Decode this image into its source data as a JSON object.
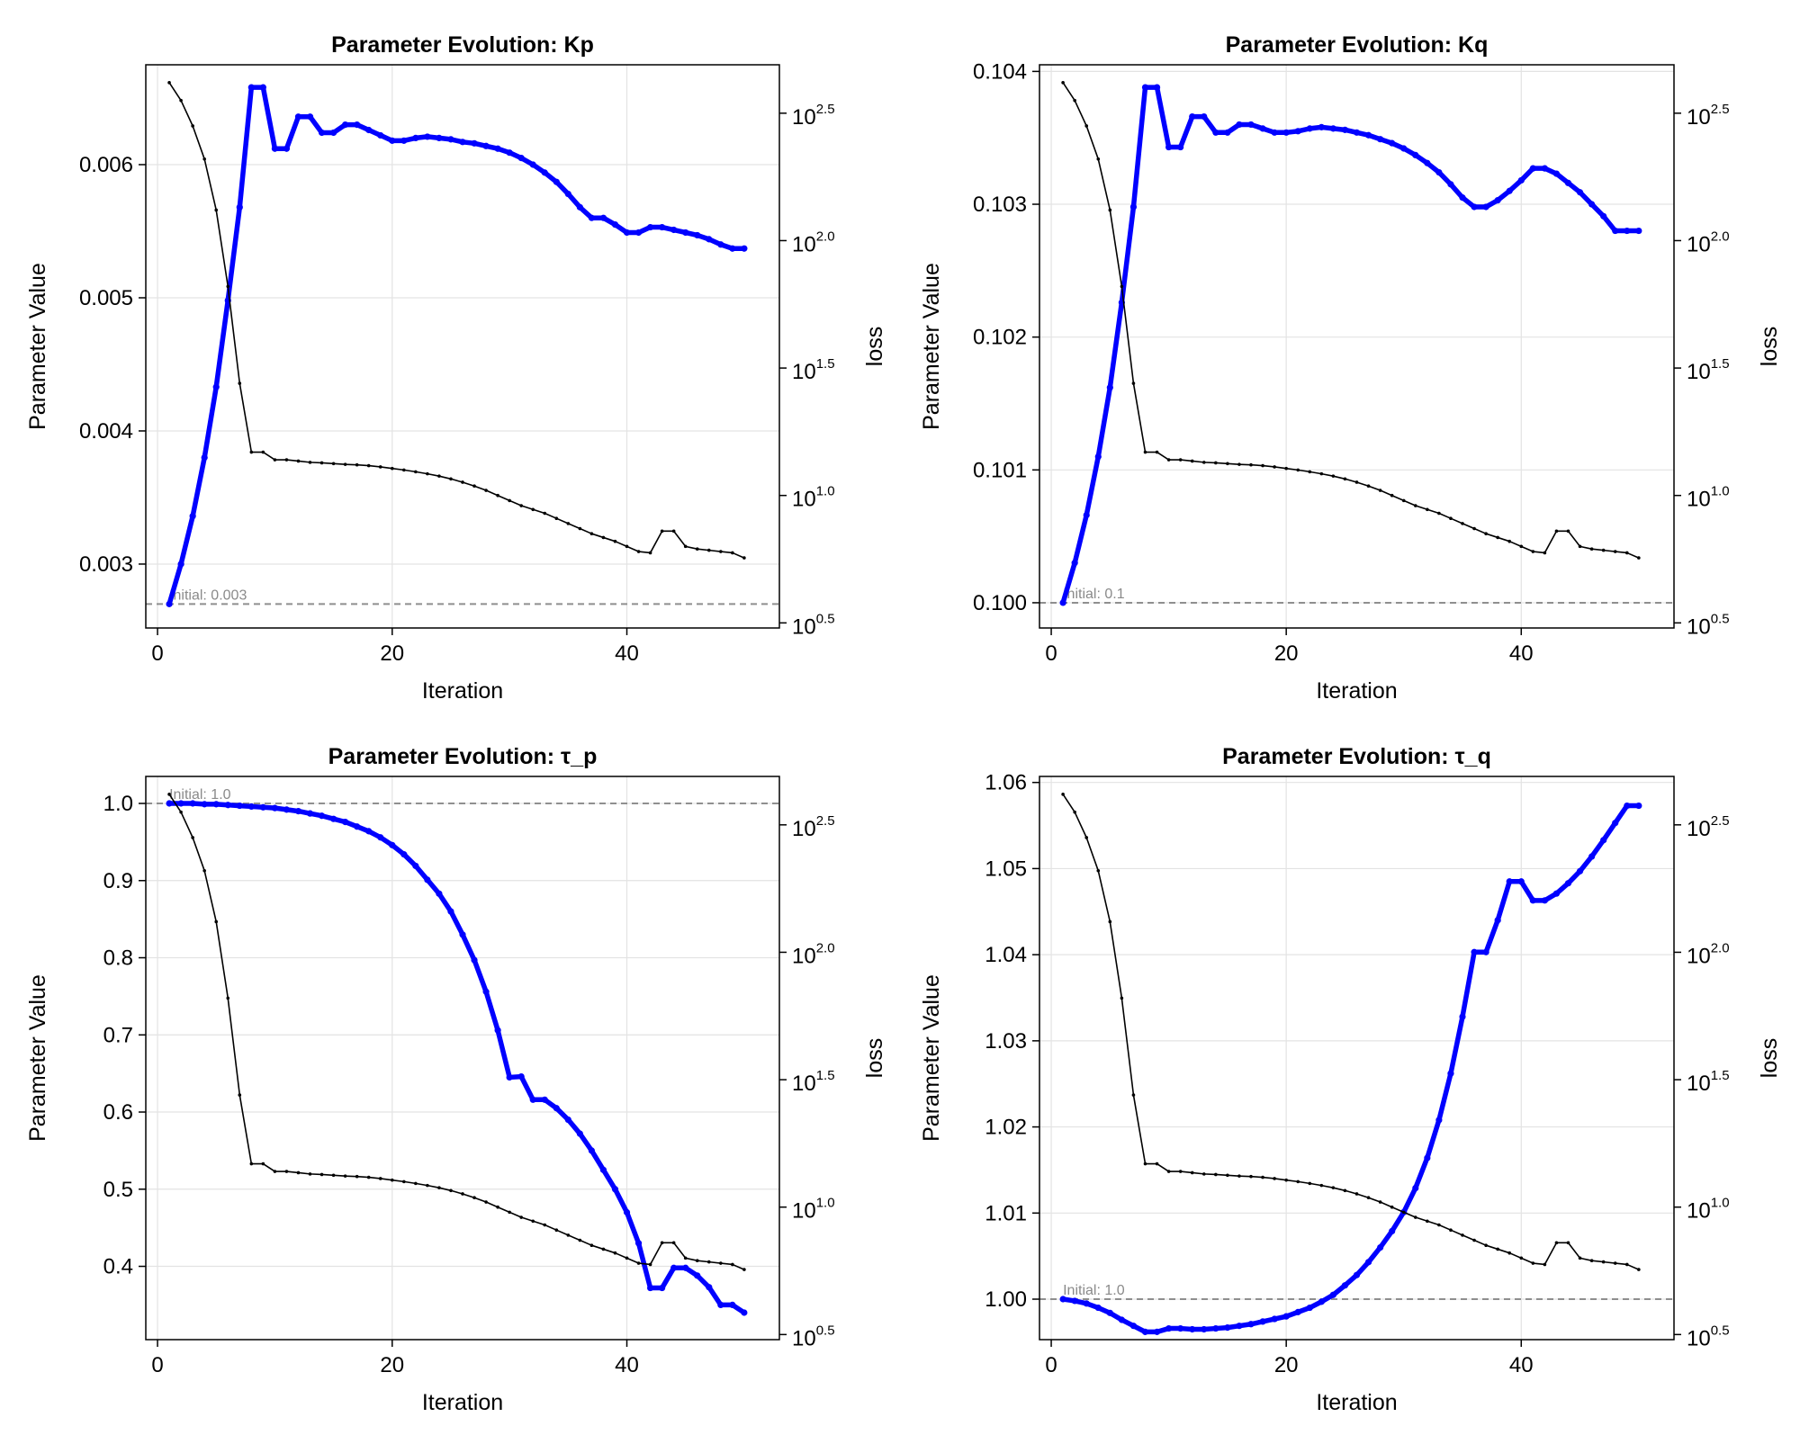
{
  "figure": {
    "colors": {
      "param_line": "#0000ff",
      "loss_line": "#000000",
      "initial_line": "#8f8f8f",
      "grid": "#e3e3e3",
      "initial_label": "#8a8a8a"
    }
  },
  "chart_data": [
    {
      "type": "line",
      "title": "Parameter Evolution: Kp",
      "xlabel": "Iteration",
      "ylabel": "Parameter Value",
      "y2label": "loss",
      "y2scale": "log10",
      "xlim": [
        -1,
        53
      ],
      "ylim": [
        0.00252,
        0.00675
      ],
      "y2lim": [
        0.48,
        2.69
      ],
      "xticks": [
        0,
        20,
        40
      ],
      "xtick_labels": [
        "0",
        "20",
        "40"
      ],
      "yticks": [
        0.003,
        0.004,
        0.005,
        0.006
      ],
      "ytick_labels": [
        "0.003",
        "0.004",
        "0.005",
        "0.006"
      ],
      "y2ticks": [
        0.5,
        1.0,
        1.5,
        2.0,
        2.5
      ],
      "y2tick_labels": [
        {
          "base": "10",
          "exp": "0.5"
        },
        {
          "base": "10",
          "exp": "1.0"
        },
        {
          "base": "10",
          "exp": "1.5"
        },
        {
          "base": "10",
          "exp": "2.0"
        },
        {
          "base": "10",
          "exp": "2.5"
        }
      ],
      "grid": true,
      "initial_value": 0.0027,
      "initial_label": "Initial: 0.003",
      "iterations": [
        1,
        2,
        3,
        4,
        5,
        6,
        7,
        8,
        9,
        10,
        11,
        12,
        13,
        14,
        15,
        16,
        17,
        18,
        19,
        20,
        21,
        22,
        23,
        24,
        25,
        26,
        27,
        28,
        29,
        30,
        31,
        32,
        33,
        34,
        35,
        36,
        37,
        38,
        39,
        40,
        41,
        42,
        43,
        44,
        45,
        46,
        47,
        48,
        49,
        50
      ],
      "series": [
        {
          "role": "parameter",
          "axis": "left",
          "color": "#0000ff",
          "values": [
            0.0027,
            0.003,
            0.00336,
            0.0038,
            0.00433,
            0.00498,
            0.00568,
            0.00658,
            0.00658,
            0.00612,
            0.00612,
            0.00636,
            0.00636,
            0.00624,
            0.00624,
            0.0063,
            0.0063,
            0.00626,
            0.00622,
            0.00618,
            0.00618,
            0.0062,
            0.00621,
            0.0062,
            0.00619,
            0.00617,
            0.00616,
            0.00614,
            0.00612,
            0.00609,
            0.00605,
            0.006,
            0.00594,
            0.00587,
            0.00578,
            0.00568,
            0.0056,
            0.0056,
            0.00555,
            0.00549,
            0.00549,
            0.00553,
            0.00553,
            0.00551,
            0.00549,
            0.00547,
            0.00544,
            0.0054,
            0.00537,
            0.00537
          ]
        },
        {
          "role": "loss",
          "axis": "right",
          "color": "#000000",
          "values": [
            2.62,
            2.55,
            2.45,
            2.32,
            2.12,
            1.82,
            1.44,
            1.17,
            1.17,
            1.14,
            1.14,
            1.135,
            1.13,
            1.128,
            1.125,
            1.122,
            1.12,
            1.117,
            1.112,
            1.106,
            1.1,
            1.093,
            1.085,
            1.076,
            1.065,
            1.052,
            1.037,
            1.02,
            1.0,
            0.98,
            0.96,
            0.945,
            0.93,
            0.91,
            0.89,
            0.87,
            0.85,
            0.835,
            0.82,
            0.8,
            0.78,
            0.775,
            0.86,
            0.86,
            0.8,
            0.79,
            0.785,
            0.78,
            0.775,
            0.755
          ]
        }
      ]
    },
    {
      "type": "line",
      "title": "Parameter Evolution: Kq",
      "xlabel": "Iteration",
      "ylabel": "Parameter Value",
      "y2label": "loss",
      "y2scale": "log10",
      "xlim": [
        -1,
        53
      ],
      "ylim": [
        0.09981,
        0.10405
      ],
      "y2lim": [
        0.48,
        2.69
      ],
      "xticks": [
        0,
        20,
        40
      ],
      "xtick_labels": [
        "0",
        "20",
        "40"
      ],
      "yticks": [
        0.1,
        0.101,
        0.102,
        0.103,
        0.104
      ],
      "ytick_labels": [
        "0.100",
        "0.101",
        "0.102",
        "0.103",
        "0.104"
      ],
      "y2ticks": [
        0.5,
        1.0,
        1.5,
        2.0,
        2.5
      ],
      "y2tick_labels": [
        {
          "base": "10",
          "exp": "0.5"
        },
        {
          "base": "10",
          "exp": "1.0"
        },
        {
          "base": "10",
          "exp": "1.5"
        },
        {
          "base": "10",
          "exp": "2.0"
        },
        {
          "base": "10",
          "exp": "2.5"
        }
      ],
      "grid": true,
      "initial_value": 0.1,
      "initial_label": "Initial: 0.1",
      "iterations": [
        1,
        2,
        3,
        4,
        5,
        6,
        7,
        8,
        9,
        10,
        11,
        12,
        13,
        14,
        15,
        16,
        17,
        18,
        19,
        20,
        21,
        22,
        23,
        24,
        25,
        26,
        27,
        28,
        29,
        30,
        31,
        32,
        33,
        34,
        35,
        36,
        37,
        38,
        39,
        40,
        41,
        42,
        43,
        44,
        45,
        46,
        47,
        48,
        49,
        50
      ],
      "series": [
        {
          "role": "parameter",
          "axis": "left",
          "color": "#0000ff",
          "values": [
            0.1,
            0.1003,
            0.10066,
            0.1011,
            0.10162,
            0.10226,
            0.10298,
            0.10388,
            0.10388,
            0.10343,
            0.10343,
            0.10366,
            0.10366,
            0.10354,
            0.10354,
            0.1036,
            0.1036,
            0.10357,
            0.10354,
            0.10354,
            0.10355,
            0.10357,
            0.10358,
            0.10357,
            0.10356,
            0.10354,
            0.10352,
            0.10349,
            0.10346,
            0.10342,
            0.10337,
            0.10331,
            0.10324,
            0.10315,
            0.10305,
            0.10298,
            0.10298,
            0.10303,
            0.1031,
            0.10318,
            0.10327,
            0.10327,
            0.10323,
            0.10316,
            0.10309,
            0.103,
            0.10291,
            0.1028,
            0.1028,
            0.1028
          ]
        },
        {
          "role": "loss",
          "axis": "right",
          "color": "#000000",
          "values": [
            2.62,
            2.55,
            2.45,
            2.32,
            2.12,
            1.82,
            1.44,
            1.17,
            1.17,
            1.14,
            1.14,
            1.135,
            1.13,
            1.128,
            1.125,
            1.122,
            1.12,
            1.117,
            1.112,
            1.106,
            1.1,
            1.093,
            1.085,
            1.076,
            1.065,
            1.052,
            1.037,
            1.02,
            1.0,
            0.98,
            0.96,
            0.945,
            0.93,
            0.91,
            0.89,
            0.87,
            0.85,
            0.835,
            0.82,
            0.8,
            0.78,
            0.775,
            0.86,
            0.86,
            0.8,
            0.79,
            0.785,
            0.78,
            0.775,
            0.755
          ]
        }
      ]
    },
    {
      "type": "line",
      "title": "Parameter Evolution: τ_p",
      "xlabel": "Iteration",
      "ylabel": "Parameter Value",
      "y2label": "loss",
      "y2scale": "log10",
      "xlim": [
        -1,
        53
      ],
      "ylim": [
        0.305,
        1.035
      ],
      "y2lim": [
        0.48,
        2.69
      ],
      "xticks": [
        0,
        20,
        40
      ],
      "xtick_labels": [
        "0",
        "20",
        "40"
      ],
      "yticks": [
        0.4,
        0.5,
        0.6,
        0.7,
        0.8,
        0.9,
        1.0
      ],
      "ytick_labels": [
        "0.4",
        "0.5",
        "0.6",
        "0.7",
        "0.8",
        "0.9",
        "1.0"
      ],
      "y2ticks": [
        0.5,
        1.0,
        1.5,
        2.0,
        2.5
      ],
      "y2tick_labels": [
        {
          "base": "10",
          "exp": "0.5"
        },
        {
          "base": "10",
          "exp": "1.0"
        },
        {
          "base": "10",
          "exp": "1.5"
        },
        {
          "base": "10",
          "exp": "2.0"
        },
        {
          "base": "10",
          "exp": "2.5"
        }
      ],
      "grid": true,
      "initial_value": 1.0,
      "initial_label": "Initial: 1.0",
      "iterations": [
        1,
        2,
        3,
        4,
        5,
        6,
        7,
        8,
        9,
        10,
        11,
        12,
        13,
        14,
        15,
        16,
        17,
        18,
        19,
        20,
        21,
        22,
        23,
        24,
        25,
        26,
        27,
        28,
        29,
        30,
        31,
        32,
        33,
        34,
        35,
        36,
        37,
        38,
        39,
        40,
        41,
        42,
        43,
        44,
        45,
        46,
        47,
        48,
        49,
        50
      ],
      "series": [
        {
          "role": "parameter",
          "axis": "left",
          "color": "#0000ff",
          "values": [
            1.0,
            1.0,
            1.0,
            0.999,
            0.999,
            0.998,
            0.997,
            0.996,
            0.995,
            0.994,
            0.992,
            0.99,
            0.987,
            0.984,
            0.98,
            0.976,
            0.97,
            0.964,
            0.956,
            0.946,
            0.934,
            0.919,
            0.901,
            0.883,
            0.86,
            0.83,
            0.797,
            0.756,
            0.706,
            0.645,
            0.646,
            0.616,
            0.616,
            0.605,
            0.59,
            0.572,
            0.55,
            0.525,
            0.5,
            0.47,
            0.43,
            0.372,
            0.372,
            0.398,
            0.398,
            0.388,
            0.373,
            0.35,
            0.35,
            0.34
          ]
        },
        {
          "role": "loss",
          "axis": "right",
          "color": "#000000",
          "values": [
            2.62,
            2.55,
            2.45,
            2.32,
            2.12,
            1.82,
            1.44,
            1.17,
            1.17,
            1.14,
            1.14,
            1.135,
            1.13,
            1.128,
            1.125,
            1.122,
            1.12,
            1.117,
            1.112,
            1.106,
            1.1,
            1.093,
            1.085,
            1.076,
            1.065,
            1.052,
            1.037,
            1.02,
            1.0,
            0.98,
            0.96,
            0.945,
            0.93,
            0.91,
            0.89,
            0.87,
            0.85,
            0.835,
            0.82,
            0.8,
            0.78,
            0.775,
            0.86,
            0.86,
            0.8,
            0.79,
            0.785,
            0.78,
            0.775,
            0.755
          ]
        }
      ]
    },
    {
      "type": "line",
      "title": "Parameter Evolution: τ_q",
      "xlabel": "Iteration",
      "ylabel": "Parameter Value",
      "y2label": "loss",
      "y2scale": "log10",
      "xlim": [
        -1,
        53
      ],
      "ylim": [
        0.9953,
        1.0607
      ],
      "y2lim": [
        0.48,
        2.69
      ],
      "xticks": [
        0,
        20,
        40
      ],
      "xtick_labels": [
        "0",
        "20",
        "40"
      ],
      "yticks": [
        1.0,
        1.01,
        1.02,
        1.03,
        1.04,
        1.05,
        1.06
      ],
      "ytick_labels": [
        "1.00",
        "1.01",
        "1.02",
        "1.03",
        "1.04",
        "1.05",
        "1.06"
      ],
      "y2ticks": [
        0.5,
        1.0,
        1.5,
        2.0,
        2.5
      ],
      "y2tick_labels": [
        {
          "base": "10",
          "exp": "0.5"
        },
        {
          "base": "10",
          "exp": "1.0"
        },
        {
          "base": "10",
          "exp": "1.5"
        },
        {
          "base": "10",
          "exp": "2.0"
        },
        {
          "base": "10",
          "exp": "2.5"
        }
      ],
      "grid": true,
      "initial_value": 1.0,
      "initial_label": "Initial: 1.0",
      "iterations": [
        1,
        2,
        3,
        4,
        5,
        6,
        7,
        8,
        9,
        10,
        11,
        12,
        13,
        14,
        15,
        16,
        17,
        18,
        19,
        20,
        21,
        22,
        23,
        24,
        25,
        26,
        27,
        28,
        29,
        30,
        31,
        32,
        33,
        34,
        35,
        36,
        37,
        38,
        39,
        40,
        41,
        42,
        43,
        44,
        45,
        46,
        47,
        48,
        49,
        50
      ],
      "series": [
        {
          "role": "parameter",
          "axis": "left",
          "color": "#0000ff",
          "values": [
            1.0,
            0.9998,
            0.9995,
            0.999,
            0.9984,
            0.9976,
            0.9969,
            0.9962,
            0.9962,
            0.9966,
            0.9966,
            0.9965,
            0.9965,
            0.9966,
            0.9967,
            0.9969,
            0.9971,
            0.9974,
            0.9977,
            0.998,
            0.9985,
            0.999,
            0.9997,
            1.0005,
            1.0016,
            1.0028,
            1.0043,
            1.006,
            1.0079,
            1.0101,
            1.0129,
            1.0164,
            1.0208,
            1.0262,
            1.0328,
            1.0403,
            1.0403,
            1.044,
            1.0485,
            1.0485,
            1.0463,
            1.0463,
            1.0471,
            1.0483,
            1.0497,
            1.0514,
            1.0533,
            1.0553,
            1.0573,
            1.0573
          ]
        },
        {
          "role": "loss",
          "axis": "right",
          "color": "#000000",
          "values": [
            2.62,
            2.55,
            2.45,
            2.32,
            2.12,
            1.82,
            1.44,
            1.17,
            1.17,
            1.14,
            1.14,
            1.135,
            1.13,
            1.128,
            1.125,
            1.122,
            1.12,
            1.117,
            1.112,
            1.106,
            1.1,
            1.093,
            1.085,
            1.076,
            1.065,
            1.052,
            1.037,
            1.02,
            1.0,
            0.98,
            0.96,
            0.945,
            0.93,
            0.91,
            0.89,
            0.87,
            0.85,
            0.835,
            0.82,
            0.8,
            0.78,
            0.775,
            0.86,
            0.86,
            0.8,
            0.79,
            0.785,
            0.78,
            0.775,
            0.755
          ]
        }
      ]
    }
  ]
}
